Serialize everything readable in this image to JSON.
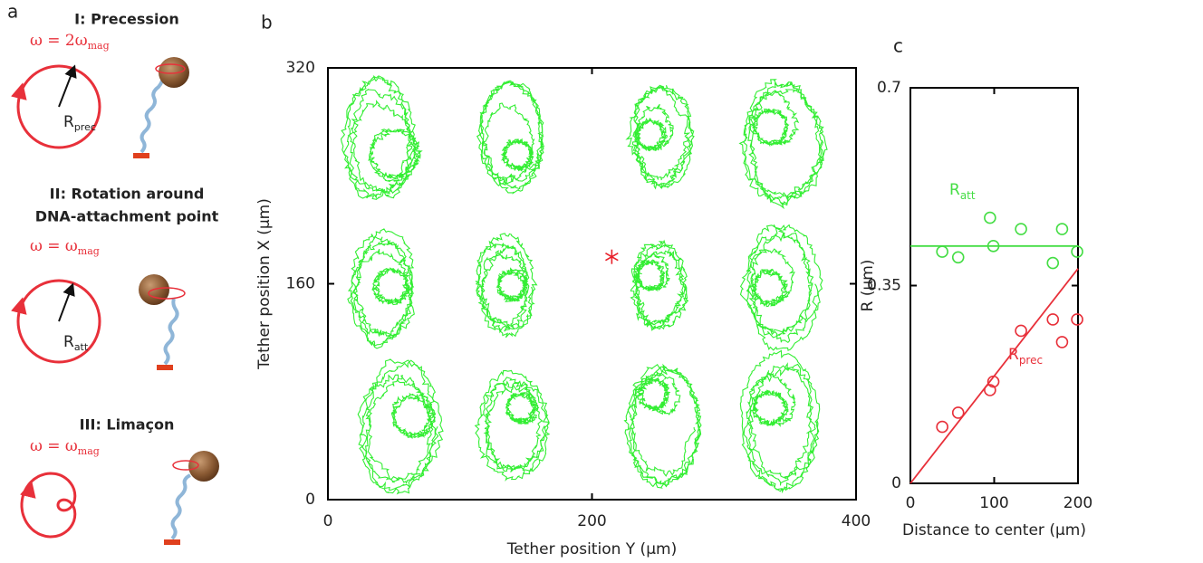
{
  "panel_a": {
    "label": "a",
    "sections": [
      {
        "title": [
          "I: Precession"
        ],
        "omega": {
          "main": "ω = 2ω",
          "sub": "mag"
        },
        "radius": {
          "main": "R",
          "sub": "prec"
        }
      },
      {
        "title": [
          "II: Rotation around",
          "DNA-attachment point"
        ],
        "omega": {
          "main": "ω = ω",
          "sub": "mag"
        },
        "radius": {
          "main": "R",
          "sub": "att"
        }
      },
      {
        "title": [
          "III: Limaçon"
        ],
        "omega": {
          "main": "ω = ω",
          "sub": "mag"
        }
      }
    ]
  },
  "chart_data": [
    {
      "type": "trajectory",
      "panel_label": "b",
      "xlabel": "Tether position Y (μm)",
      "ylabel": "Tether position X (μm)",
      "xlim": [
        0,
        400
      ],
      "xticks": [
        0,
        200,
        400
      ],
      "ylim": [
        0,
        320
      ],
      "yticks": [
        0,
        160,
        320
      ],
      "color": "#33ee33",
      "traces": [
        {
          "center": [
            39,
            266
          ],
          "radii": [
            27,
            46
          ],
          "inner_center": [
            50,
            256
          ],
          "inner_radius": 12
        },
        {
          "center": [
            139,
            269
          ],
          "radii": [
            24,
            40
          ],
          "inner_center": [
            144,
            256
          ],
          "inner_radius": 7
        },
        {
          "center": [
            252,
            268
          ],
          "radii": [
            24,
            38
          ],
          "inner_center": [
            244,
            270
          ],
          "inner_radius": 7
        },
        {
          "center": [
            345,
            266
          ],
          "radii": [
            32,
            50
          ],
          "inner_center": [
            335,
            276
          ],
          "inner_radius": 8
        },
        {
          "center": [
            41,
            158
          ],
          "radii": [
            25,
            44
          ],
          "inner_center": [
            48,
            158
          ],
          "inner_radius": 8
        },
        {
          "center": [
            134,
            158
          ],
          "radii": [
            22,
            37
          ],
          "inner_center": [
            139,
            159
          ],
          "inner_radius": 7
        },
        {
          "center": [
            251,
            158
          ],
          "radii": [
            22,
            35
          ],
          "inner_center": [
            244,
            166
          ],
          "inner_radius": 7
        },
        {
          "center": [
            343,
            159
          ],
          "radii": [
            30,
            47
          ],
          "inner_center": [
            334,
            157
          ],
          "inner_radius": 8
        },
        {
          "center": [
            54,
            54
          ],
          "radii": [
            31,
            49
          ],
          "inner_center": [
            64,
            62
          ],
          "inner_radius": 10
        },
        {
          "center": [
            140,
            55
          ],
          "radii": [
            27,
            40
          ],
          "inner_center": [
            146,
            68
          ],
          "inner_radius": 7
        },
        {
          "center": [
            253,
            55
          ],
          "radii": [
            28,
            44
          ],
          "inner_center": [
            247,
            78
          ],
          "inner_radius": 7
        },
        {
          "center": [
            343,
            58
          ],
          "radii": [
            30,
            50
          ],
          "inner_center": [
            335,
            68
          ],
          "inner_radius": 8
        }
      ],
      "marker": {
        "position": [
          215,
          180
        ],
        "color": "#e8202a"
      }
    },
    {
      "type": "scatter",
      "panel_label": "c",
      "xlabel": "Distance to center (μm)",
      "ylabel": "R (μm)",
      "xlim": [
        0,
        200
      ],
      "xticks": [
        0,
        100,
        200
      ],
      "ylim": [
        0,
        0.7
      ],
      "yticks": [
        0,
        0.35,
        0.7
      ],
      "x": [
        38,
        57,
        95,
        99,
        132,
        170,
        181,
        199
      ],
      "series": [
        {
          "name": "R",
          "name_sub": "att",
          "color": "#44dd44",
          "values": [
            0.41,
            0.4,
            0.47,
            0.42,
            0.45,
            0.39,
            0.45,
            0.41
          ],
          "fit": {
            "x": [
              0,
              200
            ],
            "y": [
              0.42,
              0.42
            ]
          }
        },
        {
          "name": "R",
          "name_sub": "prec",
          "color": "#e8303a",
          "values": [
            0.1,
            0.125,
            0.165,
            0.18,
            0.27,
            0.29,
            0.25,
            0.29
          ],
          "fit": {
            "x": [
              0,
              200
            ],
            "y": [
              0,
              0.38
            ]
          }
        }
      ]
    }
  ]
}
